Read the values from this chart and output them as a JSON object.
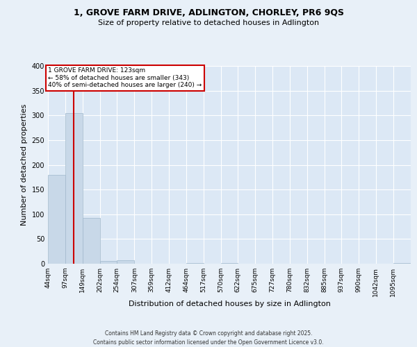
{
  "title_line1": "1, GROVE FARM DRIVE, ADLINGTON, CHORLEY, PR6 9QS",
  "title_line2": "Size of property relative to detached houses in Adlington",
  "xlabel": "Distribution of detached houses by size in Adlington",
  "ylabel": "Number of detached properties",
  "bar_labels": [
    "44sqm",
    "97sqm",
    "149sqm",
    "202sqm",
    "254sqm",
    "307sqm",
    "359sqm",
    "412sqm",
    "464sqm",
    "517sqm",
    "570sqm",
    "622sqm",
    "675sqm",
    "727sqm",
    "780sqm",
    "832sqm",
    "885sqm",
    "937sqm",
    "990sqm",
    "1042sqm",
    "1095sqm"
  ],
  "bar_values": [
    180,
    305,
    93,
    6,
    7,
    0,
    0,
    0,
    2,
    0,
    2,
    0,
    0,
    0,
    0,
    0,
    0,
    0,
    0,
    0,
    1
  ],
  "bar_color": "#c8d8e8",
  "bar_edge_color": "#a0b8cc",
  "property_line_x": 123,
  "bin_edges": [
    44,
    97,
    149,
    202,
    254,
    307,
    359,
    412,
    464,
    517,
    570,
    622,
    675,
    727,
    780,
    832,
    885,
    937,
    990,
    1042,
    1095,
    1148
  ],
  "annotation_line1": "1 GROVE FARM DRIVE: 123sqm",
  "annotation_line2": "← 58% of detached houses are smaller (343)",
  "annotation_line3": "40% of semi-detached houses are larger (240) →",
  "annotation_box_color": "#ffffff",
  "annotation_border_color": "#cc0000",
  "vline_color": "#cc0000",
  "ylim": [
    0,
    400
  ],
  "yticks": [
    0,
    50,
    100,
    150,
    200,
    250,
    300,
    350,
    400
  ],
  "background_color": "#e8f0f8",
  "plot_bg_color": "#dce8f5",
  "footer_line1": "Contains HM Land Registry data © Crown copyright and database right 2025.",
  "footer_line2": "Contains public sector information licensed under the Open Government Licence v3.0."
}
